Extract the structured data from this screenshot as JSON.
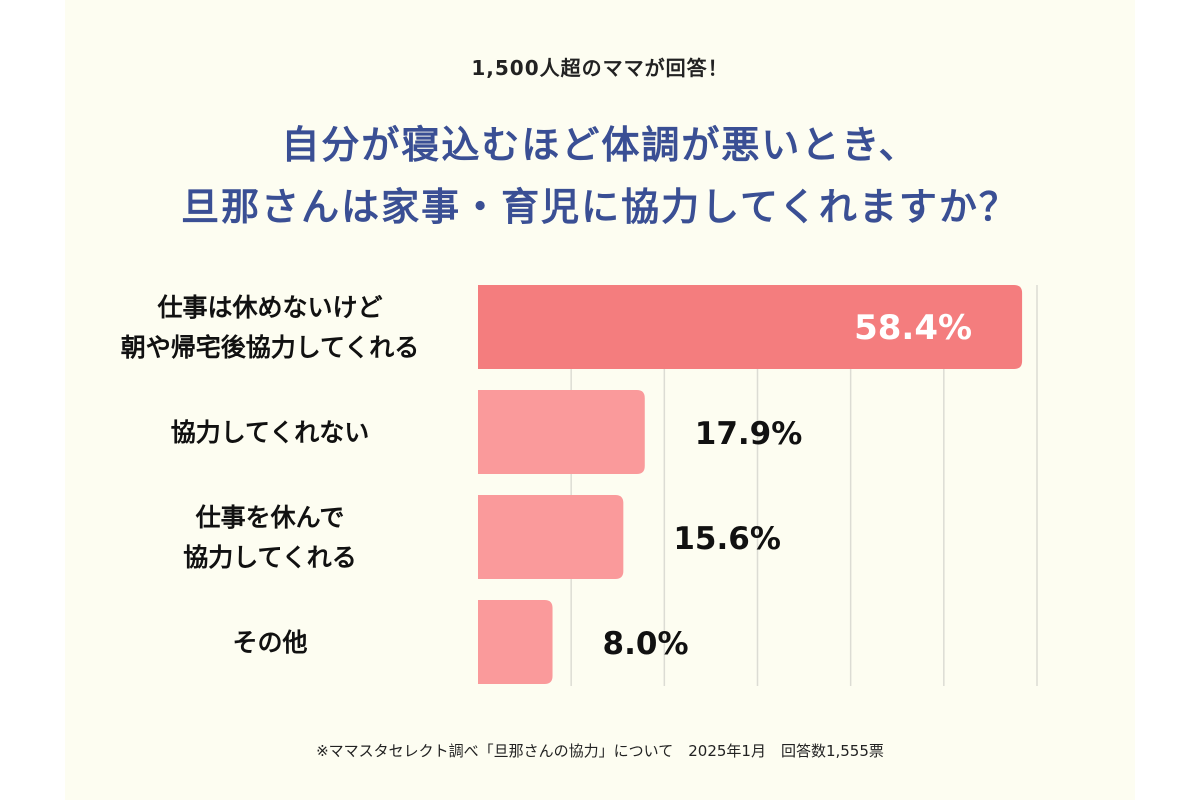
{
  "header": {
    "subtitle": "1,500人超のママが回答！",
    "title_line1": "自分が寝込むほど体調が悪いとき、",
    "title_line2": "旦那さんは家事・育児に協力してくれますか？"
  },
  "footnote": "※ママスタセレクト調べ「旦那さんの協力」について　2025年1月　回答数1,555票",
  "colors": {
    "highlight_bar": "#f47d7e",
    "bar": "#fa9a9b",
    "title": "#3a4f94",
    "grid": "#dcdcd4"
  },
  "chart_data": {
    "type": "bar",
    "orientation": "horizontal",
    "categories": [
      [
        "仕事は休めないけど",
        "朝や帰宅後協力してくれる"
      ],
      [
        "協力してくれない"
      ],
      [
        "仕事を休んで",
        "協力してくれる"
      ],
      [
        "その他"
      ]
    ],
    "values": [
      58.4,
      17.9,
      15.6,
      8.0
    ],
    "value_labels": [
      "58.4%",
      "17.9%",
      "15.6%",
      "8.0%"
    ],
    "unit": "%",
    "xlim": [
      0,
      60
    ],
    "grid": true,
    "highlight_index": 0
  }
}
